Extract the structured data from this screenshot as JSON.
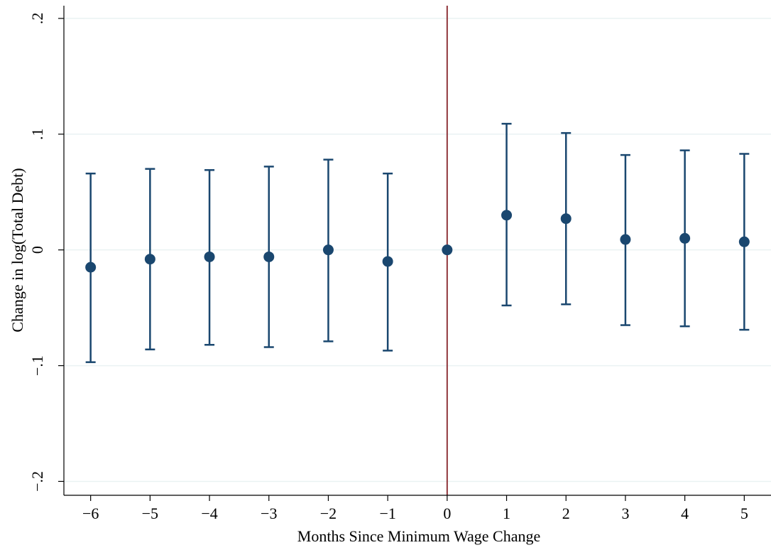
{
  "chart_data": {
    "type": "scatter",
    "title": "",
    "xlabel": "Months Since Minimum Wage Change",
    "ylabel": "Change in log(Total Debt)",
    "x": [
      -6,
      -5,
      -4,
      -3,
      -2,
      -1,
      0,
      1,
      2,
      3,
      4,
      5
    ],
    "x_tick_labels": [
      "−6",
      "−5",
      "−4",
      "−3",
      "−2",
      "−1",
      "0",
      "1",
      "2",
      "3",
      "4",
      "5"
    ],
    "y_ticks": [
      -0.2,
      -0.1,
      0,
      0.1,
      0.2
    ],
    "y_tick_labels": [
      "−.2",
      "−.1",
      "0",
      ".1",
      ".2"
    ],
    "xlim": [
      -6.45,
      5.45
    ],
    "ylim": [
      -0.212,
      0.211
    ],
    "grid": "horizontal",
    "series": [
      {
        "type": "point-estimate-with-95ci",
        "estimate": [
          -0.015,
          -0.008,
          -0.006,
          -0.006,
          0.0,
          -0.01,
          0.0,
          0.03,
          0.027,
          0.009,
          0.01,
          0.007
        ],
        "ci_low": [
          -0.097,
          -0.086,
          -0.082,
          -0.084,
          -0.079,
          -0.087,
          null,
          -0.048,
          -0.047,
          -0.065,
          -0.066,
          -0.069
        ],
        "ci_high": [
          0.066,
          0.07,
          0.069,
          0.072,
          0.078,
          0.066,
          null,
          0.109,
          0.101,
          0.082,
          0.086,
          0.083
        ]
      }
    ],
    "reference_line": {
      "orientation": "vertical",
      "x": 0
    },
    "colors": {
      "marker": "#1a476f",
      "reference_line": "#90353b",
      "grid": "#eaf2f3",
      "axis": "#000000",
      "background": "#ffffff"
    }
  }
}
